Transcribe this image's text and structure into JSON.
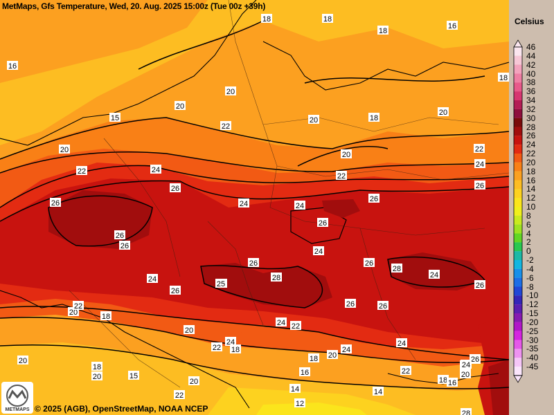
{
  "header": {
    "title": "MetMaps, Gfs Temperature, Wed, 20. Aug. 2025 15:00z (Tue 00z +39h)"
  },
  "footer": {
    "copyright": "© 2025 (AGB), OpenStreetMap, NOAA NCEP",
    "logo_text": "METMAPS"
  },
  "legend": {
    "unit": "Celsius",
    "entries": [
      {
        "label": "46",
        "color": "#fbe6ef"
      },
      {
        "label": "44",
        "color": "#f7c7d6"
      },
      {
        "label": "42",
        "color": "#f3a3bd"
      },
      {
        "label": "40",
        "color": "#ee7fa4"
      },
      {
        "label": "38",
        "color": "#e85a8b"
      },
      {
        "label": "36",
        "color": "#d73771"
      },
      {
        "label": "34",
        "color": "#b41e55"
      },
      {
        "label": "32",
        "color": "#8e0d3c"
      },
      {
        "label": "30",
        "color": "#7a0a0a"
      },
      {
        "label": "28",
        "color": "#a10d0d"
      },
      {
        "label": "26",
        "color": "#c8130f"
      },
      {
        "label": "24",
        "color": "#e32b12"
      },
      {
        "label": "22",
        "color": "#f25a14"
      },
      {
        "label": "20",
        "color": "#f98016"
      },
      {
        "label": "18",
        "color": "#fca020"
      },
      {
        "label": "16",
        "color": "#fdbd22"
      },
      {
        "label": "14",
        "color": "#fdd21f"
      },
      {
        "label": "12",
        "color": "#fbe51c"
      },
      {
        "label": "10",
        "color": "#f0ef1c"
      },
      {
        "label": "8",
        "color": "#c9ea1e"
      },
      {
        "label": "6",
        "color": "#9ee221"
      },
      {
        "label": "4",
        "color": "#62d624"
      },
      {
        "label": "2",
        "color": "#28c850"
      },
      {
        "label": "0",
        "color": "#1cb9a6"
      },
      {
        "label": "-2",
        "color": "#13b6e0"
      },
      {
        "label": "-4",
        "color": "#1790ea"
      },
      {
        "label": "-6",
        "color": "#1c6ee6"
      },
      {
        "label": "-8",
        "color": "#2147d6"
      },
      {
        "label": "-10",
        "color": "#3426b8"
      },
      {
        "label": "-12",
        "color": "#5a1fb0"
      },
      {
        "label": "-15",
        "color": "#861ab0"
      },
      {
        "label": "-20",
        "color": "#b116c8"
      },
      {
        "label": "-25",
        "color": "#d524df"
      },
      {
        "label": "-30",
        "color": "#e558e8"
      },
      {
        "label": "-35",
        "color": "#ee93f0"
      },
      {
        "label": "-40",
        "color": "#f6c6f7"
      },
      {
        "label": "-45",
        "color": "#fbe5fb"
      }
    ]
  },
  "map_labels": [
    "16",
    "18",
    "18",
    "16",
    "18",
    "18",
    "20",
    "20",
    "20",
    "18",
    "20",
    "15",
    "22",
    "20",
    "20",
    "22",
    "24",
    "22",
    "22",
    "24",
    "26",
    "26",
    "24",
    "24",
    "26",
    "26",
    "26",
    "26",
    "26",
    "24",
    "26",
    "24",
    "26",
    "26",
    "28",
    "26",
    "28",
    "24",
    "26",
    "25",
    "26",
    "22",
    "28",
    "26",
    "24",
    "20",
    "20",
    "22",
    "22",
    "18",
    "20",
    "24",
    "18",
    "20",
    "24",
    "22",
    "24",
    "26",
    "18",
    "20",
    "16",
    "18",
    "15",
    "20",
    "22",
    "14",
    "14",
    "12",
    "18",
    "16",
    "20",
    "22",
    "26",
    "28",
    "24",
    "18"
  ],
  "colors": {
    "deep": "#a10d0d",
    "red": "#c8130f",
    "redorange": "#e32b12",
    "orange": "#f25a14",
    "light_orange": "#f98016",
    "amber": "#fca020",
    "yellow_orange": "#fdbd22",
    "yellow": "#fdd21f"
  }
}
